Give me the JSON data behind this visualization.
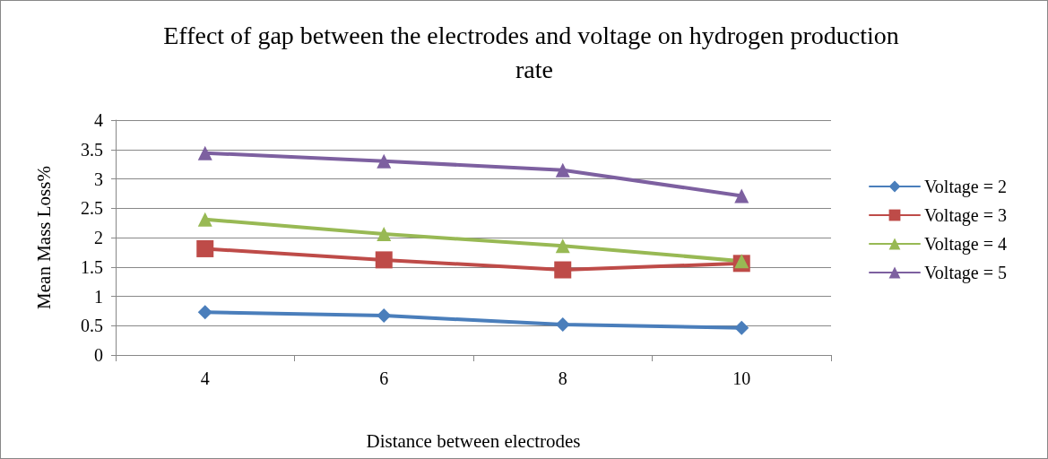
{
  "chart_data": {
    "type": "line",
    "title": "Effect of gap between the electrodes and voltage on hydrogen production rate",
    "xlabel": "Distance between electrodes",
    "ylabel": "Mean Mass Loss%",
    "categories": [
      "4",
      "6",
      "8",
      "10"
    ],
    "ylim": [
      0,
      4
    ],
    "yticks": [
      0,
      0.5,
      1,
      1.5,
      2,
      2.5,
      3,
      3.5,
      4
    ],
    "grid": "y",
    "legend": "right",
    "line_style": "solid",
    "series": [
      {
        "name": "Voltage = 2",
        "color": "#4a7ebb",
        "marker": "diamond",
        "values": [
          0.73,
          0.67,
          0.52,
          0.46
        ]
      },
      {
        "name": "Voltage = 3",
        "color": "#be4b48",
        "marker": "square",
        "values": [
          1.81,
          1.62,
          1.45,
          1.56
        ]
      },
      {
        "name": "Voltage = 4",
        "color": "#98b954",
        "marker": "triangle",
        "values": [
          2.31,
          2.06,
          1.86,
          1.6
        ]
      },
      {
        "name": "Voltage = 5",
        "color": "#7d60a0",
        "marker": "triangle",
        "values": [
          3.44,
          3.3,
          3.15,
          2.71
        ]
      }
    ]
  }
}
